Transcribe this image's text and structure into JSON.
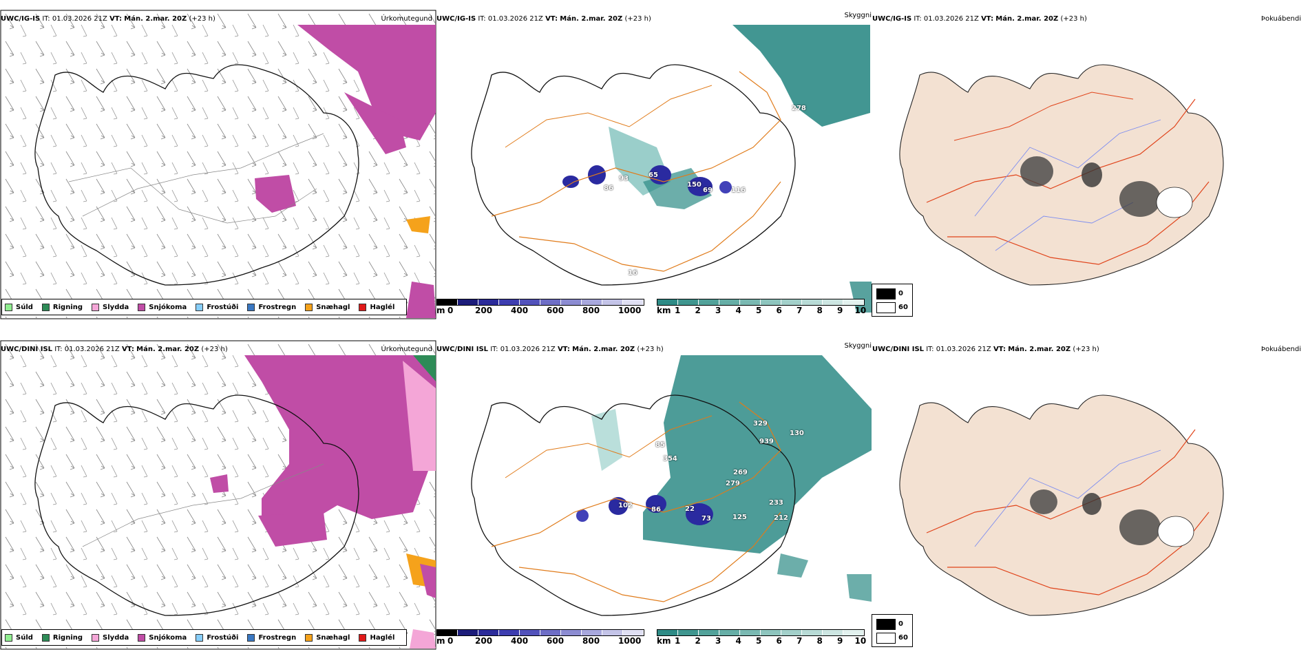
{
  "rows": [
    {
      "model": "UWC/IG-IS",
      "it_label": "IT:",
      "it_value": "01.03.2026 21Z",
      "vt_label": "VT:",
      "vt_value": "Mán. 2.mar. 20Z",
      "lead": "(+23 h)",
      "titles": {
        "precip": "Úrkomutegund",
        "vis": "Skyggni",
        "fog": "Þokuábendi"
      },
      "vis_labels": [
        "278",
        "65",
        "93",
        "86",
        "150",
        "69",
        "116",
        "16"
      ]
    },
    {
      "model": "UWC/DINI ISL",
      "it_label": "IT:",
      "it_value": "01.03.2026 21Z",
      "vt_label": "VT:",
      "vt_value": "Mán. 2.mar. 20Z",
      "lead": "(+23 h)",
      "titles": {
        "precip": "Úrkomutegund",
        "vis": "Skyggni",
        "fog": "Þokuábendi"
      },
      "vis_labels": [
        "329",
        "130",
        "939",
        "85",
        "354",
        "269",
        "279",
        "102",
        "86",
        "22",
        "73",
        "125",
        "233",
        "212"
      ]
    }
  ],
  "precip_legend": [
    {
      "label": "Súld",
      "color": "#90ee90"
    },
    {
      "label": "Rigning",
      "color": "#2e8b57"
    },
    {
      "label": "Slydda",
      "color": "#f4a6d7"
    },
    {
      "label": "Snjókoma",
      "color": "#c04da6"
    },
    {
      "label": "Frostúði",
      "color": "#87cefa"
    },
    {
      "label": "Frostregn",
      "color": "#3a78c2"
    },
    {
      "label": "Snæhagl",
      "color": "#f5a21b"
    },
    {
      "label": "Haglél",
      "color": "#e01919"
    }
  ],
  "cloud_base_bar": {
    "unit": "m",
    "ticks": [
      "0",
      "200",
      "400",
      "600",
      "800",
      "1000"
    ]
  },
  "vis_bar": {
    "unit": "km",
    "ticks": [
      "1",
      "2",
      "3",
      "4",
      "5",
      "6",
      "7",
      "8",
      "9",
      "10"
    ]
  },
  "fog_bar": {
    "ticks": [
      "0",
      "60"
    ]
  },
  "colors": {
    "snow": "#c04da6",
    "hail": "#f5a21b",
    "rain": "#2e8b57",
    "vis_teal": "#2e8b86",
    "cloud_blue": "#2a2aa0",
    "roads": "#e07b1a",
    "land_beige": "#f3e1d2",
    "rivers": "#7c8cf0",
    "red_roads": "#e0431a"
  }
}
